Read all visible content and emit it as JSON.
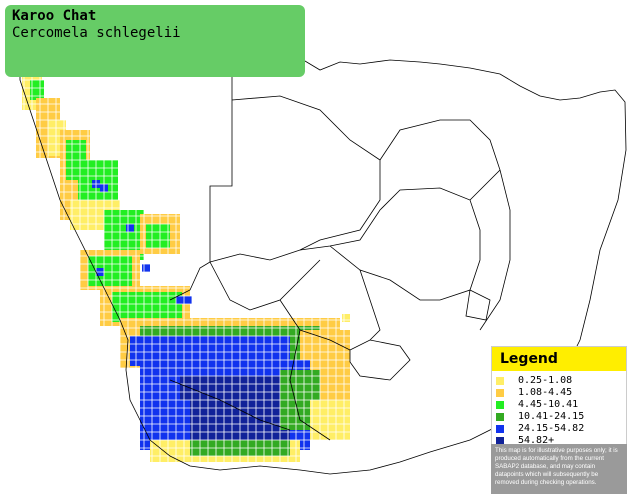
{
  "title": {
    "common_name": "Karoo Chat",
    "scientific_name": "Cercomela schlegelii"
  },
  "map": {
    "background_color": "#ffffff",
    "border_color": "#000000",
    "grid_line_color": "#ffffff"
  },
  "legend": {
    "heading": "Legend",
    "heading_color": "#ffee00",
    "items": [
      {
        "label": "0.25-1.08",
        "color": "#ffee66"
      },
      {
        "label": "1.08-4.45",
        "color": "#ffcc44"
      },
      {
        "label": "4.45-10.41",
        "color": "#22ee22"
      },
      {
        "label": "10.41-24.15",
        "color": "#33aa22"
      },
      {
        "label": "24.15-54.82",
        "color": "#1133ee"
      },
      {
        "label": "54.82+",
        "color": "#112299"
      }
    ]
  },
  "disclaimer": "This map is for illustrative purposes only; it is produced automatically from the current SABAP2 database, and may contain datapoints which will subsequently be removed during checking operations."
}
